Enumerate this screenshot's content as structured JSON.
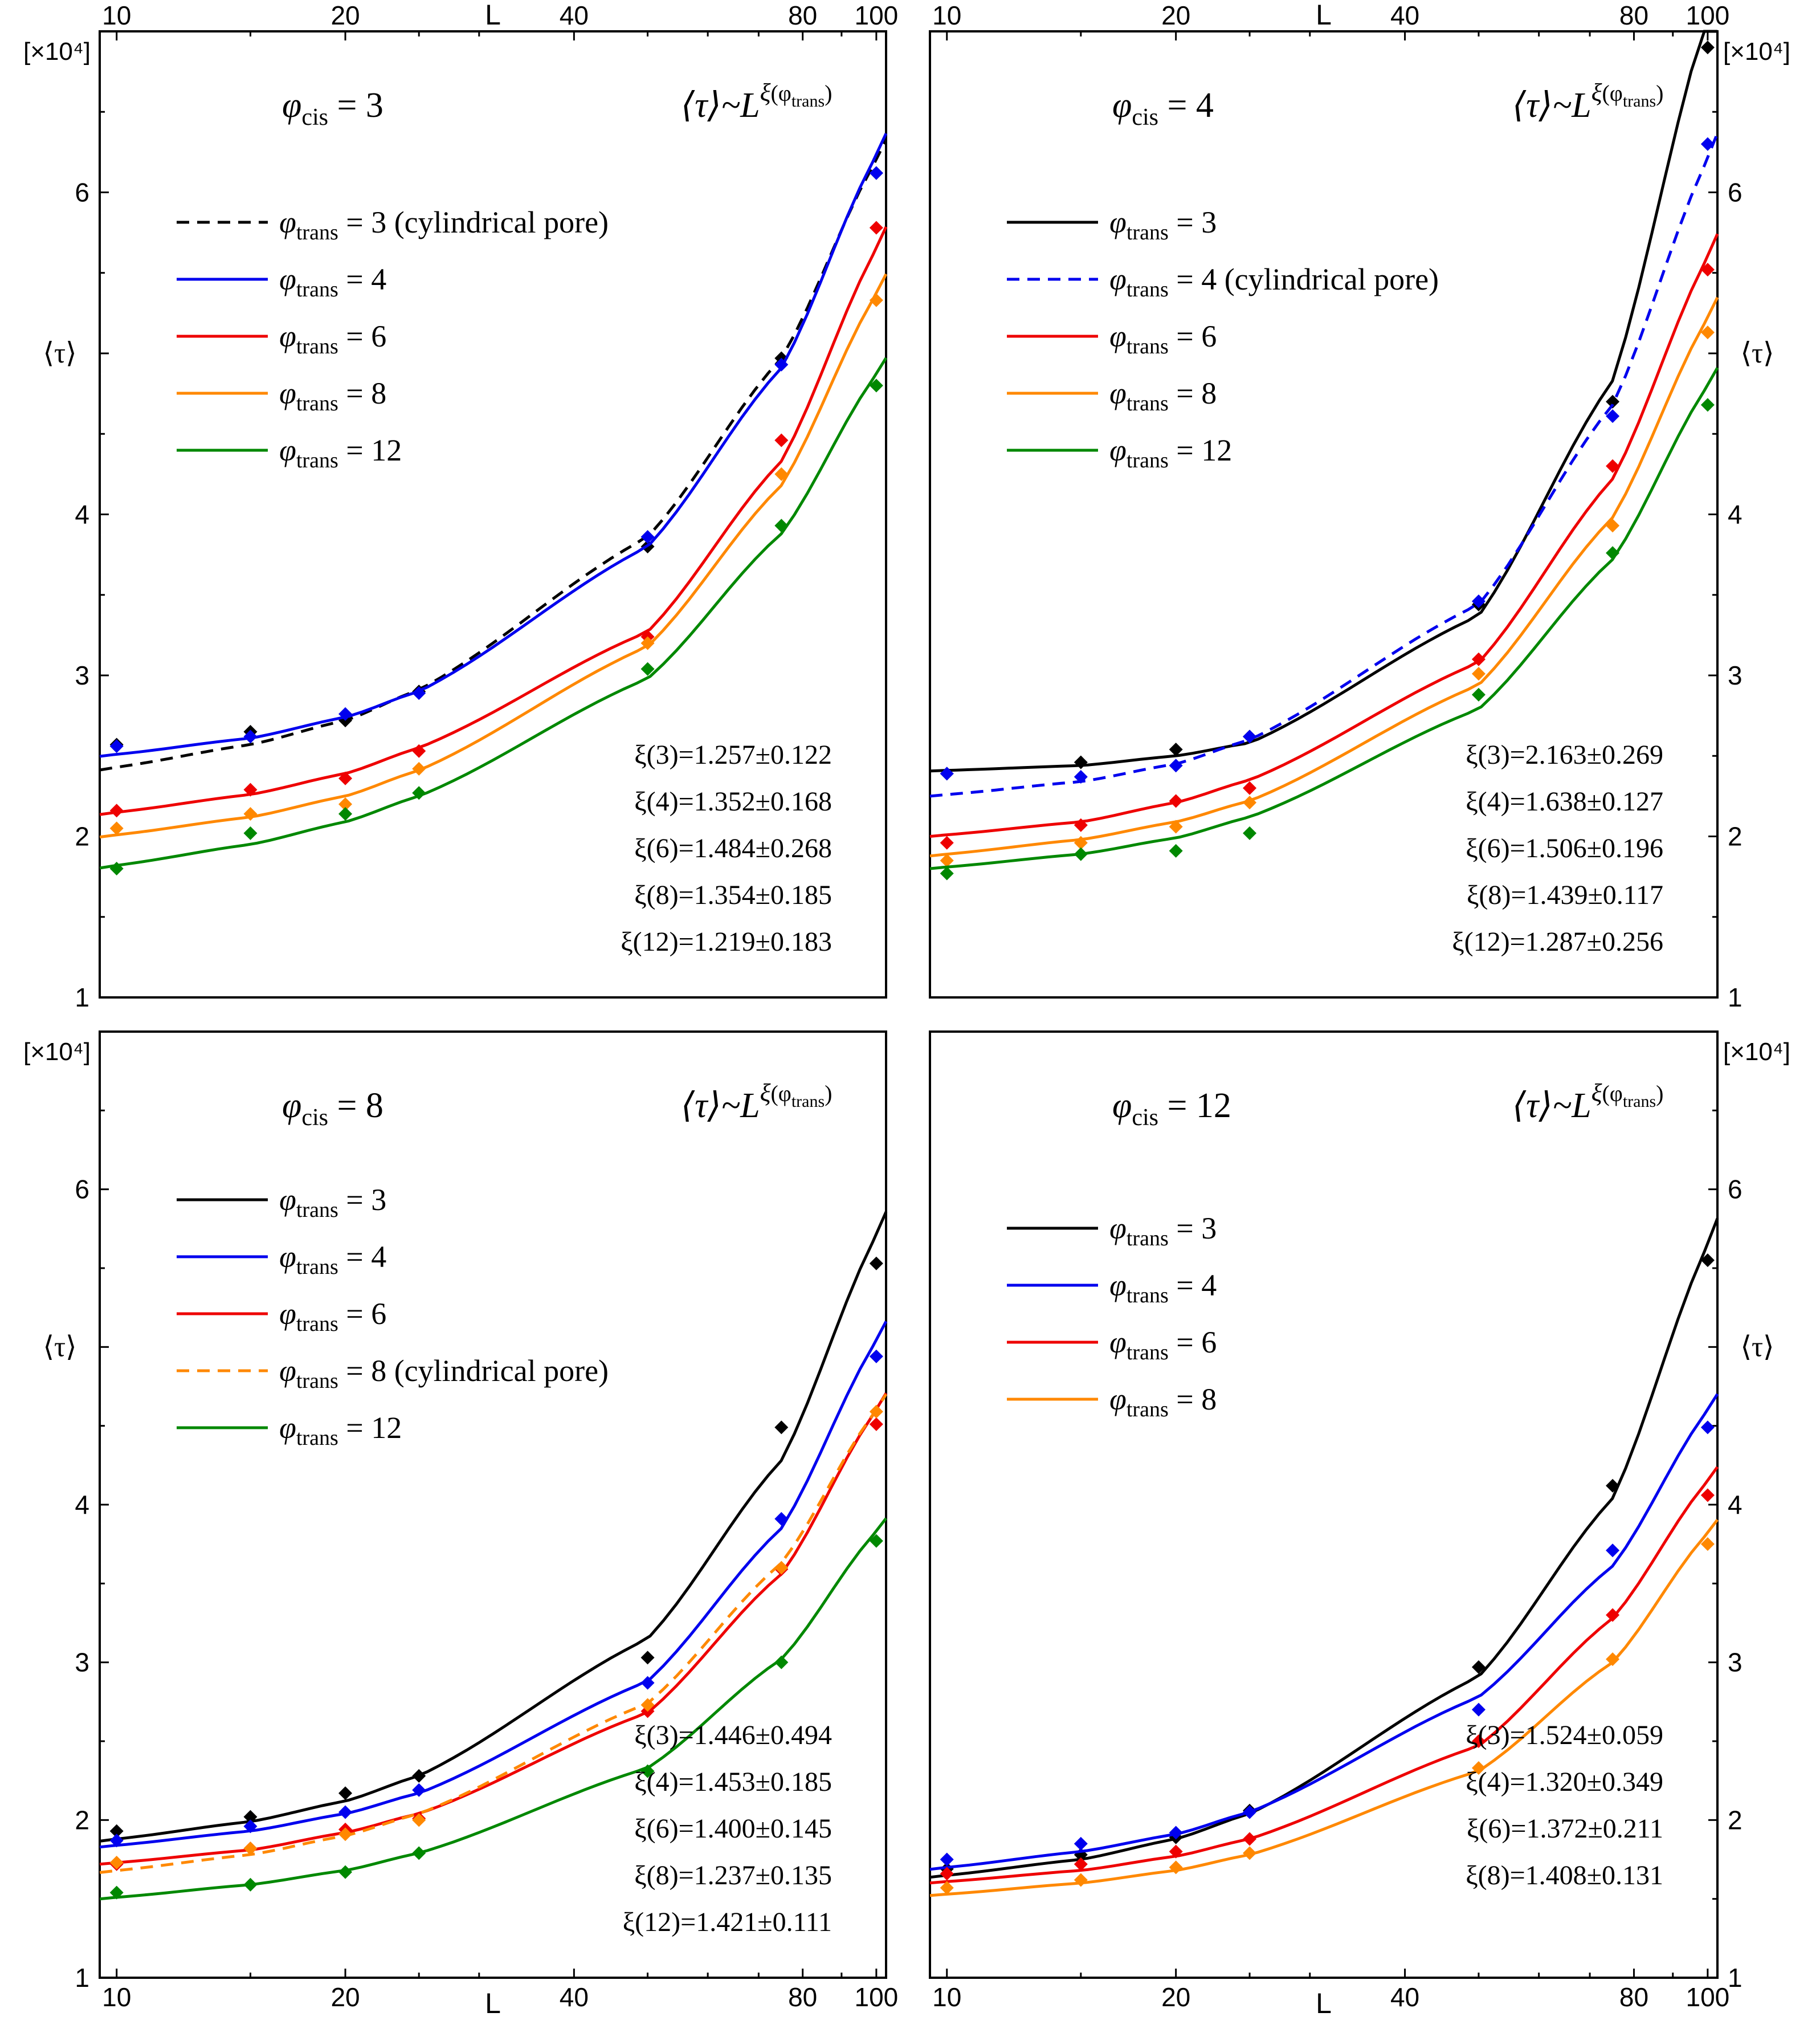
{
  "figure": {
    "colors": {
      "3": "#000000",
      "4": "#0000ee",
      "6": "#ee0000",
      "8": "#ff8800",
      "12": "#008800"
    },
    "x_axis_label": "L",
    "y_axis_label": "⟨τ⟩",
    "y_unit_label": "[×10⁴]",
    "fit_formula": {
      "lhs": "⟨τ⟩~L",
      "exp_sym": "ξ",
      "exp_arg": "(φ",
      "exp_sub": "trans",
      "exp_close": ")"
    },
    "x_ticks": [
      10,
      20,
      40,
      80,
      100
    ],
    "y_ticks": [
      1,
      2,
      3,
      4,
      5,
      6
    ],
    "y_tick_labels": [
      "1",
      "2",
      "3",
      "4",
      "",
      "6"
    ],
    "x_scale": "log",
    "xlim": [
      9.5,
      103
    ],
    "ylim": [
      1,
      7
    ]
  },
  "chart_data": [
    {
      "id": "cis3",
      "type": "scatter",
      "title": {
        "sym": "φ",
        "sub": "cis",
        "rest": " = 3"
      },
      "xlabel": "L",
      "ylabel": "⟨τ⟩ [×10⁴]",
      "x": [
        10,
        15,
        20,
        25,
        50,
        75,
        100
      ],
      "series": [
        {
          "phi_trans": "3",
          "legend": " = 3 (cylindrical pore)",
          "style": "dashed",
          "values": [
            2.57,
            2.65,
            2.72,
            2.9,
            3.8,
            4.97,
            6.12
          ],
          "fit": [
            2.43,
            2.57,
            2.72,
            2.91,
            3.86,
            4.97,
            6.2
          ],
          "xi": "ξ(3)=1.257±0.122"
        },
        {
          "phi_trans": "4",
          "legend": " = 4",
          "style": "solid",
          "values": [
            2.56,
            2.62,
            2.76,
            2.89,
            3.86,
            4.93,
            6.12
          ],
          "fit": [
            2.51,
            2.61,
            2.74,
            2.9,
            3.8,
            4.91,
            6.23
          ],
          "xi": "ξ(4)=1.352±0.168"
        },
        {
          "phi_trans": "6",
          "legend": " = 6",
          "style": "solid",
          "values": [
            2.16,
            2.29,
            2.36,
            2.53,
            3.24,
            4.46,
            5.78
          ],
          "fit": [
            2.15,
            2.26,
            2.39,
            2.55,
            3.27,
            4.33,
            5.65
          ],
          "xi": "ξ(6)=1.484±0.268"
        },
        {
          "phi_trans": "8",
          "legend": " = 8",
          "style": "solid",
          "values": [
            2.05,
            2.14,
            2.2,
            2.42,
            3.2,
            4.25,
            5.33
          ],
          "fit": [
            2.01,
            2.12,
            2.25,
            2.41,
            3.18,
            4.18,
            5.37
          ],
          "xi": "ξ(8)=1.354±0.185"
        },
        {
          "phi_trans": "12",
          "legend": " = 12",
          "style": "solid",
          "values": [
            1.8,
            2.02,
            2.14,
            2.27,
            3.04,
            3.93,
            4.8
          ],
          "fit": [
            1.82,
            1.95,
            2.09,
            2.25,
            2.98,
            3.88,
            4.87
          ],
          "xi": "ξ(12)=1.219±0.183"
        }
      ]
    },
    {
      "id": "cis4",
      "type": "scatter",
      "title": {
        "sym": "φ",
        "sub": "cis",
        "rest": " = 4"
      },
      "xlabel": "L",
      "ylabel": "⟨τ⟩ [×10⁴]",
      "x": [
        10,
        15,
        20,
        25,
        50,
        75,
        100
      ],
      "series": [
        {
          "phi_trans": "3",
          "legend": " = 3",
          "style": "solid",
          "values": [
            2.39,
            2.46,
            2.54,
            2.62,
            3.44,
            4.7,
            6.9
          ],
          "fit": [
            2.41,
            2.44,
            2.5,
            2.58,
            3.37,
            4.83,
            7.1
          ],
          "xi": "ξ(3)=2.163±0.269"
        },
        {
          "phi_trans": "4",
          "legend": " = 4 (cylindrical pore)",
          "style": "dashed",
          "values": [
            2.39,
            2.37,
            2.44,
            2.62,
            3.46,
            4.61,
            6.3
          ],
          "fit": [
            2.26,
            2.34,
            2.45,
            2.6,
            3.44,
            4.68,
            6.21
          ],
          "xi": "ξ(4)=1.638±0.127"
        },
        {
          "phi_trans": "6",
          "legend": " = 6",
          "style": "solid",
          "values": [
            1.96,
            2.07,
            2.22,
            2.3,
            3.1,
            4.3,
            5.52
          ],
          "fit": [
            2.01,
            2.09,
            2.21,
            2.35,
            3.08,
            4.22,
            5.6
          ],
          "xi": "ξ(6)=1.506±0.196"
        },
        {
          "phi_trans": "8",
          "legend": " = 8",
          "style": "solid",
          "values": [
            1.85,
            1.96,
            2.06,
            2.21,
            3.01,
            3.93,
            5.13
          ],
          "fit": [
            1.89,
            1.98,
            2.09,
            2.22,
            2.94,
            3.98,
            5.22
          ],
          "xi": "ξ(8)=1.439±0.117"
        },
        {
          "phi_trans": "12",
          "legend": " = 12",
          "style": "solid",
          "values": [
            1.77,
            1.89,
            1.91,
            2.02,
            2.88,
            3.76,
            4.68
          ],
          "fit": [
            1.81,
            1.89,
            1.99,
            2.12,
            2.79,
            3.72,
            4.8
          ],
          "xi": "ξ(12)=1.287±0.256"
        }
      ]
    },
    {
      "id": "cis8",
      "type": "scatter",
      "title": {
        "sym": "φ",
        "sub": "cis",
        "rest": " = 8"
      },
      "xlabel": "L",
      "ylabel": "⟨τ⟩ [×10⁴]",
      "x": [
        10,
        15,
        20,
        25,
        50,
        75,
        100
      ],
      "series": [
        {
          "phi_trans": "3",
          "legend": " = 3",
          "style": "solid",
          "values": [
            1.93,
            2.02,
            2.17,
            2.28,
            3.03,
            4.49,
            5.53
          ],
          "fit": [
            1.88,
            1.99,
            2.12,
            2.28,
            3.15,
            4.28,
            5.71
          ],
          "xi": "ξ(3)=1.446±0.494"
        },
        {
          "phi_trans": "4",
          "legend": " = 4",
          "style": "solid",
          "values": [
            1.87,
            1.96,
            2.05,
            2.19,
            2.87,
            3.91,
            4.94
          ],
          "fit": [
            1.84,
            1.93,
            2.04,
            2.17,
            2.88,
            3.85,
            5.04
          ],
          "xi": "ξ(4)=1.453±0.185"
        },
        {
          "phi_trans": "6",
          "legend": " = 6",
          "style": "solid",
          "values": [
            1.72,
            1.82,
            1.94,
            2.01,
            2.69,
            3.59,
            4.51
          ],
          "fit": [
            1.73,
            1.81,
            1.92,
            2.04,
            2.68,
            3.56,
            4.6
          ],
          "xi": "ξ(6)=1.400±0.145"
        },
        {
          "phi_trans": "8",
          "legend": " = 8 (cylindrical pore)",
          "style": "dashed",
          "values": [
            1.73,
            1.82,
            1.91,
            2.0,
            2.73,
            3.6,
            4.59
          ],
          "fit": [
            1.68,
            1.78,
            1.9,
            2.04,
            2.74,
            3.63,
            4.6
          ],
          "xi": "ξ(8)=1.237±0.135"
        },
        {
          "phi_trans": "12",
          "legend": " = 12",
          "style": "solid",
          "values": [
            1.54,
            1.59,
            1.67,
            1.79,
            2.31,
            3.0,
            3.77
          ],
          "fit": [
            1.51,
            1.59,
            1.68,
            1.79,
            2.33,
            3.02,
            3.83
          ],
          "xi": "ξ(12)=1.421±0.111"
        }
      ]
    },
    {
      "id": "cis12",
      "type": "scatter",
      "title": {
        "sym": "φ",
        "sub": "cis",
        "rest": " = 12"
      },
      "xlabel": "L",
      "ylabel": "⟨τ⟩ [×10⁴]",
      "x": [
        10,
        15,
        20,
        25,
        50,
        75,
        100
      ],
      "series": [
        {
          "phi_trans": "3",
          "legend": " = 3",
          "style": "solid",
          "values": [
            1.69,
            1.78,
            1.89,
            2.06,
            2.97,
            4.12,
            5.55
          ],
          "fit": [
            1.65,
            1.75,
            1.88,
            2.04,
            2.91,
            4.04,
            5.65
          ],
          "xi": "ξ(3)=1.524±0.059"
        },
        {
          "phi_trans": "4",
          "legend": " = 4",
          "style": "solid",
          "values": [
            1.75,
            1.85,
            1.92,
            2.05,
            2.7,
            3.71,
            4.49
          ],
          "fit": [
            1.7,
            1.8,
            1.91,
            2.05,
            2.78,
            3.61,
            4.6
          ],
          "xi": "ξ(4)=1.320±0.349"
        },
        {
          "phi_trans": "6",
          "legend": " = 6",
          "style": "solid",
          "values": [
            1.66,
            1.72,
            1.8,
            1.88,
            2.5,
            3.3,
            4.06
          ],
          "fit": [
            1.61,
            1.68,
            1.77,
            1.88,
            2.47,
            3.28,
            4.15
          ],
          "xi": "ξ(6)=1.372±0.211"
        },
        {
          "phi_trans": "8",
          "legend": " = 8",
          "style": "solid",
          "values": [
            1.57,
            1.62,
            1.7,
            1.79,
            2.33,
            3.02,
            3.75
          ],
          "fit": [
            1.53,
            1.6,
            1.68,
            1.78,
            2.31,
            3.0,
            3.82
          ],
          "xi": "ξ(8)=1.408±0.131"
        }
      ]
    }
  ]
}
